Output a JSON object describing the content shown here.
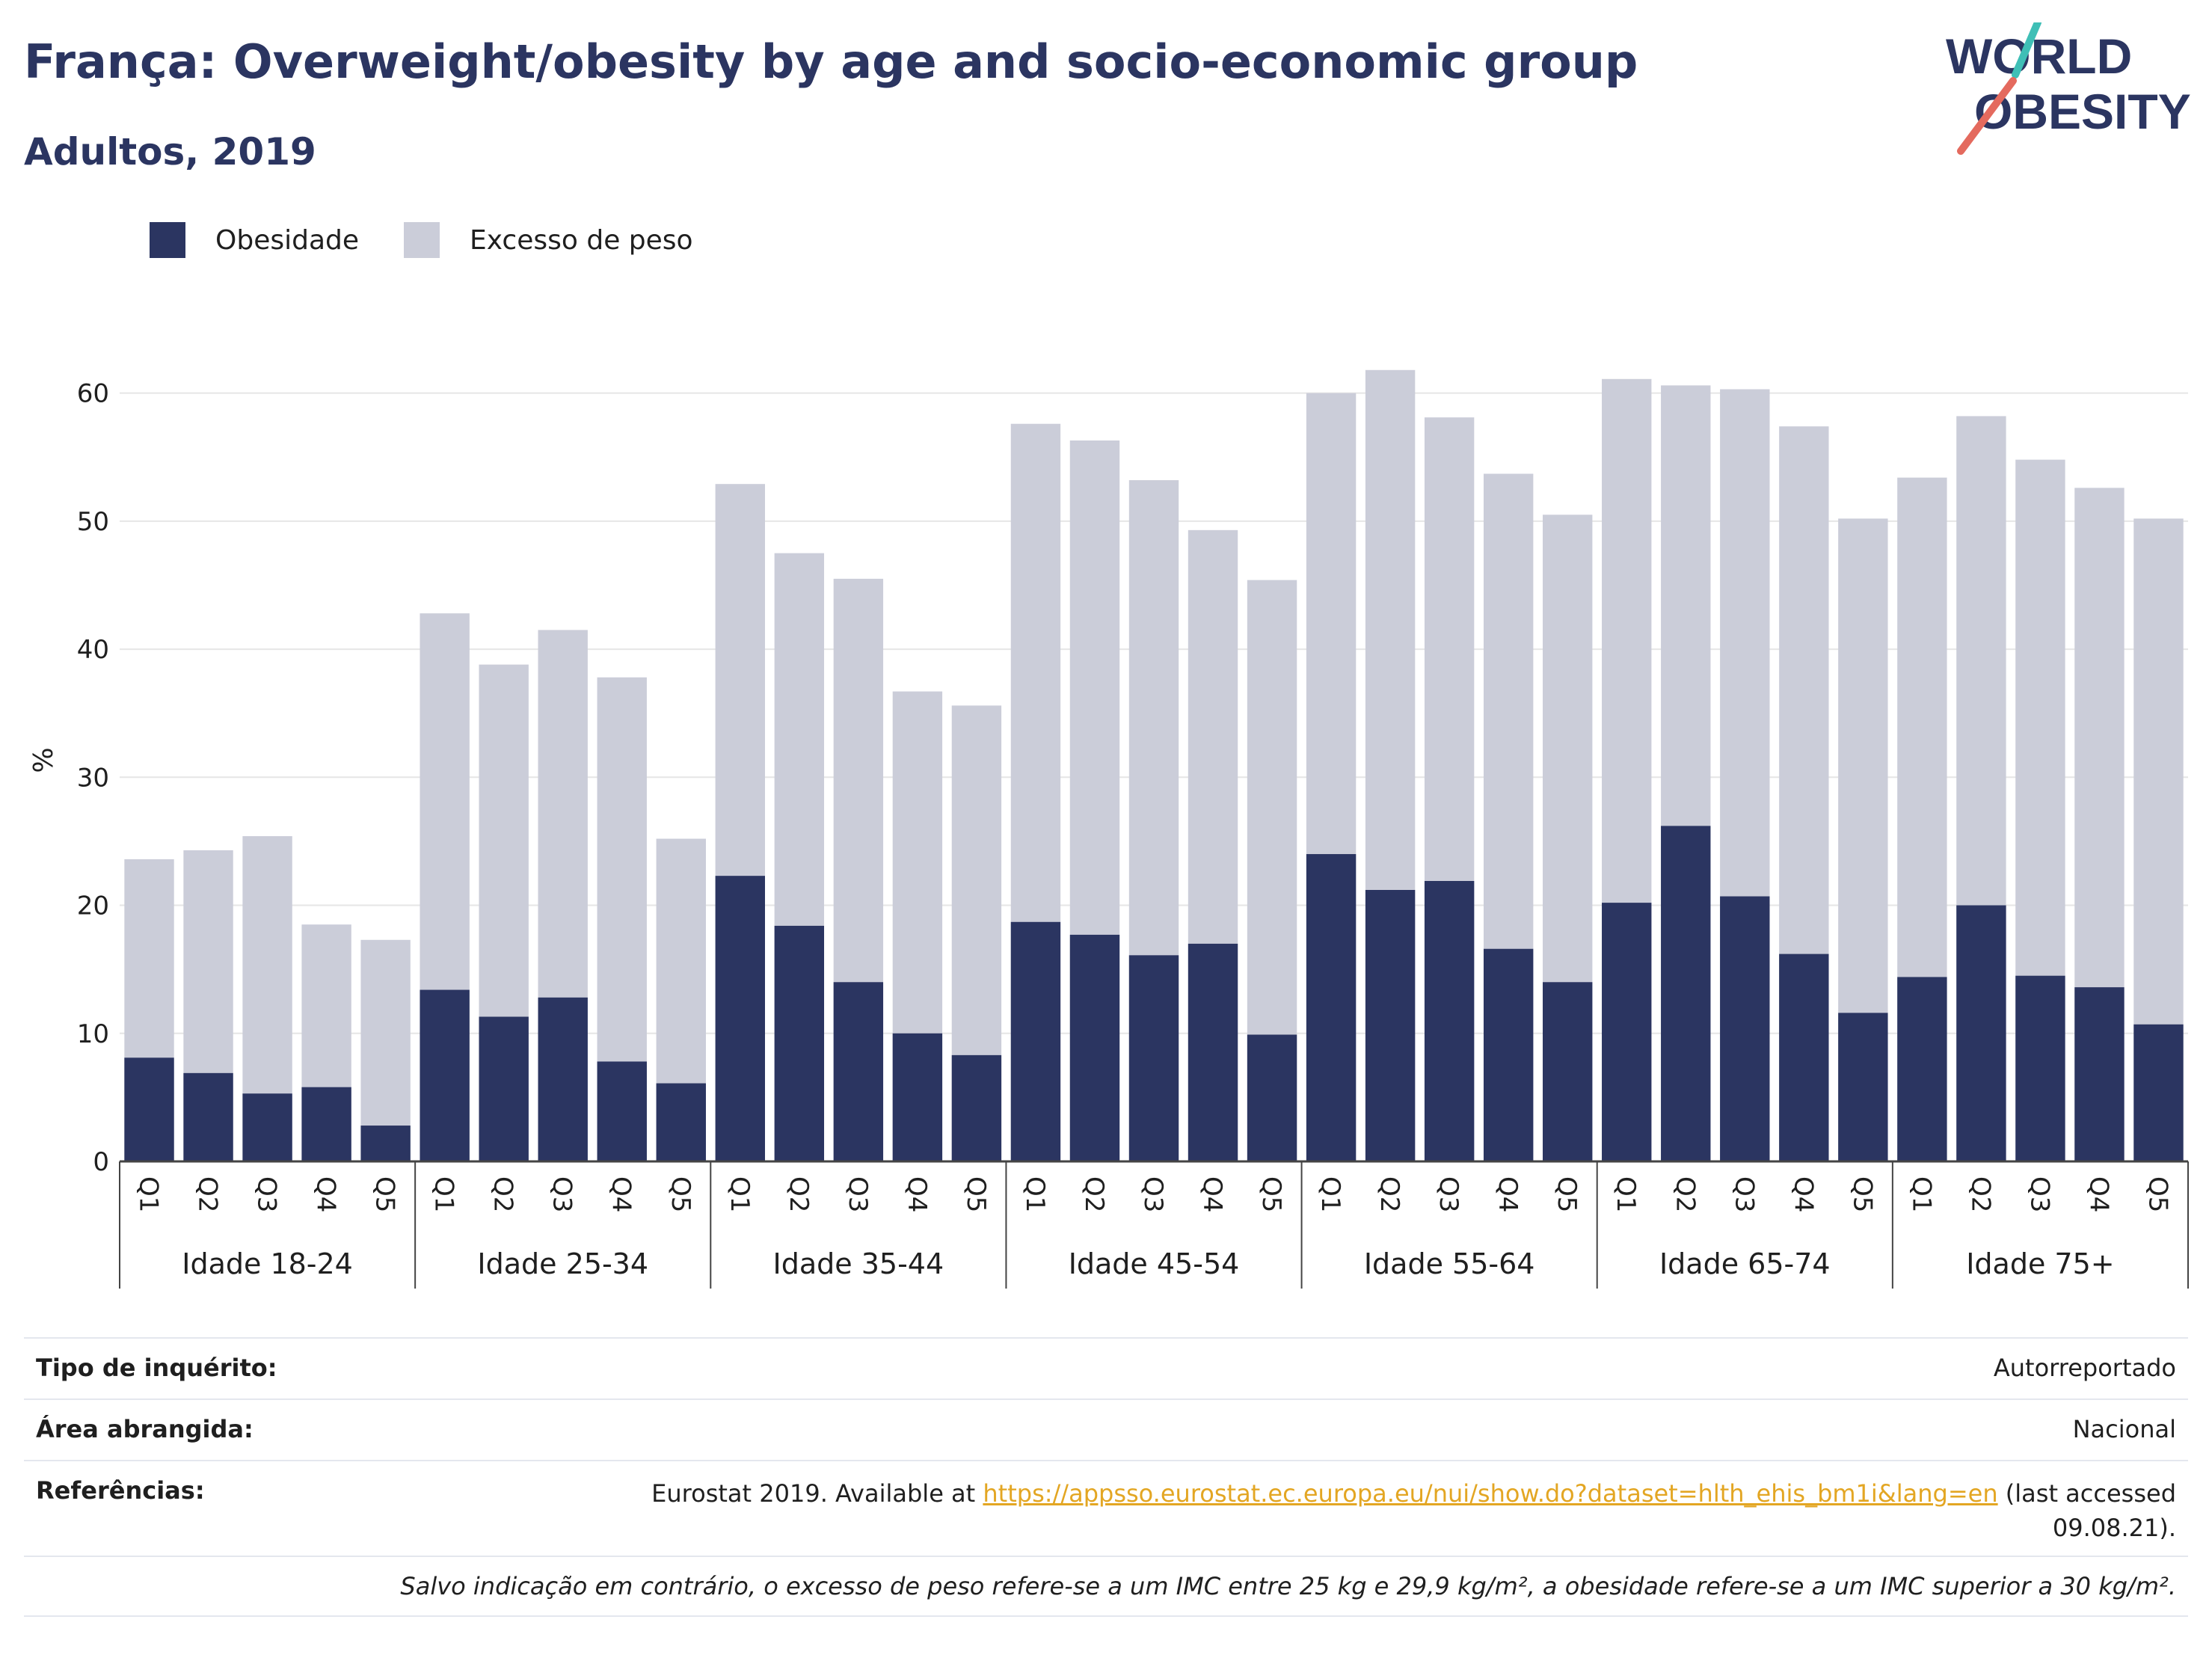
{
  "header": {
    "title": "França: Overweight/obesity by age and socio-economic group",
    "subtitle": "Adultos, 2019"
  },
  "logo": {
    "line1": "WORLD",
    "line2": "OBESITY",
    "icon": "slash-stroke-icon"
  },
  "legend": [
    {
      "label": "Obesidade",
      "color": "#2b3561"
    },
    {
      "label": "Excesso de peso",
      "color": "#cbcdd9"
    }
  ],
  "chart_data": {
    "type": "bar",
    "stacked": false,
    "overlaid": true,
    "ylabel": "%",
    "xlabel": "",
    "ylim": [
      0,
      65
    ],
    "yticks": [
      0,
      10,
      20,
      30,
      40,
      50,
      60
    ],
    "grid": true,
    "legend_position": "top-left",
    "groups": [
      "Idade 18-24",
      "Idade 25-34",
      "Idade 35-44",
      "Idade 45-54",
      "Idade 55-64",
      "Idade 65-74",
      "Idade 75+"
    ],
    "categories": [
      "Q1",
      "Q2",
      "Q3",
      "Q4",
      "Q5"
    ],
    "series": [
      {
        "name": "Excesso de peso",
        "color": "#cbcdd9",
        "values": [
          [
            23.6,
            24.3,
            25.4,
            18.5,
            17.3
          ],
          [
            42.8,
            38.8,
            41.5,
            37.8,
            25.2
          ],
          [
            52.9,
            47.5,
            45.5,
            36.7,
            35.6
          ],
          [
            57.6,
            56.3,
            53.2,
            49.3,
            45.4
          ],
          [
            60.0,
            61.8,
            58.1,
            53.7,
            50.5
          ],
          [
            61.1,
            60.6,
            60.3,
            57.4,
            50.2
          ],
          [
            53.4,
            58.2,
            54.8,
            52.6,
            50.2
          ]
        ]
      },
      {
        "name": "Obesidade",
        "color": "#2b3561",
        "values": [
          [
            8.1,
            6.9,
            5.3,
            5.8,
            2.8
          ],
          [
            13.4,
            11.3,
            12.8,
            7.8,
            6.1
          ],
          [
            22.3,
            18.4,
            14.0,
            10.0,
            8.3
          ],
          [
            18.7,
            17.7,
            16.1,
            17.0,
            9.9
          ],
          [
            24.0,
            21.2,
            21.9,
            16.6,
            14.0
          ],
          [
            20.2,
            26.2,
            20.7,
            16.2,
            11.6
          ],
          [
            14.4,
            20.0,
            14.5,
            13.6,
            10.7
          ]
        ]
      }
    ]
  },
  "meta": {
    "survey_label": "Tipo de inquérito:",
    "survey_value": "Autorreportado",
    "area_label": "Área abrangida:",
    "area_value": "Nacional",
    "ref_label": "Referências:",
    "ref_prefix": "Eurostat 2019. Available at",
    "ref_url": "https://appsso.eurostat.ec.europa.eu/nui/show.do?dataset=hlth_ehis_bm1i&lang=en",
    "ref_suffix_1": "(last accessed",
    "ref_suffix_2": "09.08.21).",
    "note": "Salvo indicação em contrário, o excesso de peso refere-se a um IMC entre 25 kg e 29,9 kg/m², a obesidade refere-se a um IMC superior a 30 kg/m²."
  }
}
